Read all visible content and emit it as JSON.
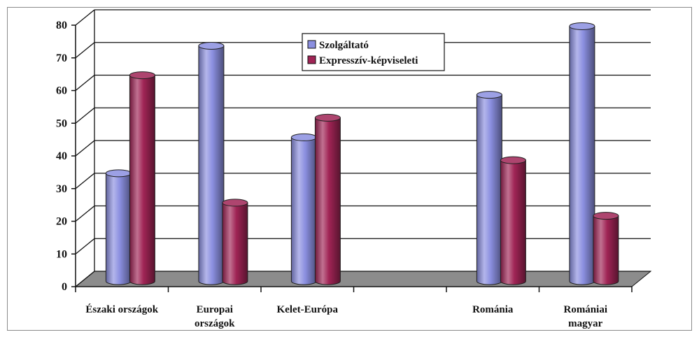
{
  "chart_data": {
    "type": "bar",
    "title": "",
    "xlabel": "",
    "ylabel": "",
    "ylim": [
      0,
      80
    ],
    "yticks": [
      0,
      10,
      20,
      30,
      40,
      50,
      60,
      70,
      80
    ],
    "grid": true,
    "legend_position": "top-center",
    "categories": [
      [
        "Északi országok"
      ],
      [
        "Europai",
        "országok"
      ],
      [
        "Kelet-Európa"
      ],
      [
        ""
      ],
      [
        "Románia"
      ],
      [
        "Romániai",
        "magyar"
      ]
    ],
    "series": [
      {
        "name": "Szolgáltató",
        "color": "#8b8fe0",
        "values": [
          33,
          72,
          44,
          null,
          57,
          78
        ]
      },
      {
        "name": "Expresszív-képviseleti",
        "color": "#a02455",
        "values": [
          63,
          24,
          50,
          null,
          37,
          20
        ]
      }
    ]
  }
}
